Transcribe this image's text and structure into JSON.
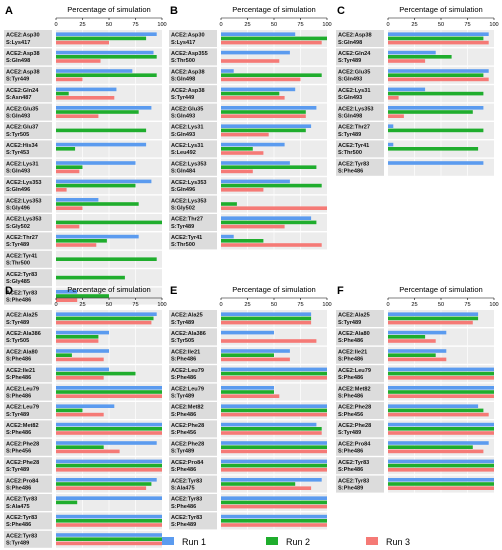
{
  "figure": {
    "legend": [
      {
        "label": "Run 1",
        "color": "#5b9bef"
      },
      {
        "label": "Run 2",
        "color": "#1fad2d"
      },
      {
        "label": "Run 3",
        "color": "#f57a76"
      }
    ]
  },
  "chart_data": [
    {
      "panel": "A",
      "type": "bar",
      "orientation": "horizontal",
      "title": "Percentage of simulation",
      "xlim": [
        0,
        100
      ],
      "xticks": [
        "0",
        "25",
        "50",
        "75",
        "100"
      ],
      "categories": [
        [
          "ACE2:Asp30",
          "S:Lys417"
        ],
        [
          "ACE2:Asp38",
          "S:Gln498"
        ],
        [
          "ACE2:Asp38",
          "S:Tyr449"
        ],
        [
          "ACE2:Gln24",
          "S:Asn487"
        ],
        [
          "ACE2:Glu35",
          "S:Gln493"
        ],
        [
          "ACE2:Glu37",
          "S:Tyr505"
        ],
        [
          "ACE2:His34",
          "S:Tyr453"
        ],
        [
          "ACE2:Lys31",
          "S:Gln493"
        ],
        [
          "ACE2:Lys353",
          "S:Gln496"
        ],
        [
          "ACE2:Lys353",
          "S:Gly496"
        ],
        [
          "ACE2:Lys353",
          "S:Gly502"
        ],
        [
          "ACE2:Thr27",
          "S:Tyr489"
        ],
        [
          "ACE2:Tyr41",
          "S:Thr500"
        ],
        [
          "ACE2:Tyr83",
          "S:Gly485"
        ],
        [
          "ACE2:Tyr83",
          "S:Phe486"
        ]
      ],
      "series": [
        {
          "name": "Run 1",
          "values": [
            95,
            92,
            72,
            57,
            90,
            0,
            85,
            75,
            90,
            40,
            0,
            78,
            0,
            0,
            20
          ]
        },
        {
          "name": "Run 2",
          "values": [
            85,
            95,
            95,
            12,
            78,
            85,
            18,
            25,
            75,
            78,
            100,
            48,
            95,
            65,
            50
          ]
        },
        {
          "name": "Run 3",
          "values": [
            50,
            42,
            25,
            55,
            40,
            0,
            0,
            22,
            10,
            25,
            22,
            38,
            0,
            0,
            20
          ]
        }
      ]
    },
    {
      "panel": "B",
      "type": "bar",
      "orientation": "horizontal",
      "title": "Percentage of simulation",
      "xlim": [
        0,
        100
      ],
      "xticks": [
        "0",
        "25",
        "50",
        "75",
        "100"
      ],
      "categories": [
        [
          "ACE2:Asp30",
          "S:Lys417"
        ],
        [
          "ACE2:Asp355",
          "S:Thr500"
        ],
        [
          "ACE2:Asp38",
          "S:Gln498"
        ],
        [
          "ACE2:Asp38",
          "S:Tyr449"
        ],
        [
          "ACE2:Glu35",
          "S:Gln493"
        ],
        [
          "ACE2:Lys31",
          "S:Gln493"
        ],
        [
          "ACE2:Lys31",
          "S:Leu492"
        ],
        [
          "ACE2:Lys353",
          "S:Gln484"
        ],
        [
          "ACE2:Lys353",
          "S:Gln496"
        ],
        [
          "ACE2:Lys353",
          "S:Gly502"
        ],
        [
          "ACE2:Thr27",
          "S:Tyr489"
        ],
        [
          "ACE2:Tyr41",
          "S:Thr500"
        ]
      ],
      "series": [
        {
          "name": "Run 1",
          "values": [
            70,
            65,
            12,
            70,
            90,
            85,
            60,
            65,
            65,
            0,
            85,
            12
          ]
        },
        {
          "name": "Run 2",
          "values": [
            100,
            0,
            95,
            55,
            80,
            80,
            30,
            90,
            95,
            15,
            90,
            40
          ]
        },
        {
          "name": "Run 3",
          "values": [
            95,
            55,
            75,
            60,
            80,
            45,
            40,
            30,
            40,
            100,
            60,
            95
          ]
        }
      ]
    },
    {
      "panel": "C",
      "type": "bar",
      "orientation": "horizontal",
      "title": "Percentage of simulation",
      "xlim": [
        0,
        100
      ],
      "xticks": [
        "0",
        "25",
        "50",
        "75",
        "100"
      ],
      "categories": [
        [
          "ACE2:Asp38",
          "S:Gln498"
        ],
        [
          "ACE2:Gln24",
          "S:Tyr489"
        ],
        [
          "ACE2:Glu35",
          "S:Gln493"
        ],
        [
          "ACE2:Lys31",
          "S:Gln493"
        ],
        [
          "ACE2:Lys353",
          "S:Gln498"
        ],
        [
          "ACE2:Thr27",
          "S:Tyr489"
        ],
        [
          "ACE2:Tyr41",
          "S:Thr500"
        ],
        [
          "ACE2:Tyr83",
          "S:Phe486"
        ]
      ],
      "series": [
        {
          "name": "Run 1",
          "values": [
            95,
            45,
            95,
            35,
            90,
            5,
            5,
            90
          ]
        },
        {
          "name": "Run 2",
          "values": [
            90,
            60,
            90,
            90,
            80,
            90,
            85,
            0
          ]
        },
        {
          "name": "Run 3",
          "values": [
            95,
            35,
            95,
            10,
            15,
            0,
            0,
            0
          ]
        }
      ]
    },
    {
      "panel": "D",
      "type": "bar",
      "orientation": "horizontal",
      "title": "Percentage of simulation",
      "xlim": [
        0,
        100
      ],
      "xticks": [
        "0",
        "25",
        "50",
        "75",
        "100"
      ],
      "categories": [
        [
          "ACE2:Ala25",
          "S:Tyr489"
        ],
        [
          "ACE2:Ala386",
          "S:Tyr505"
        ],
        [
          "ACE2:Ala80",
          "S:Phe486"
        ],
        [
          "ACE2:Ile21",
          "S:Phe486"
        ],
        [
          "ACE2:Leu79",
          "S:Phe486"
        ],
        [
          "ACE2:Leu79",
          "S:Tyr489"
        ],
        [
          "ACE2:Met82",
          "S:Phe486"
        ],
        [
          "ACE2:Phe28",
          "S:Phe456"
        ],
        [
          "ACE2:Phe28",
          "S:Tyr489"
        ],
        [
          "ACE2:Pro84",
          "S:Phe486"
        ],
        [
          "ACE2:Tyr83",
          "S:Ala475"
        ],
        [
          "ACE2:Tyr83",
          "S:Phe486"
        ],
        [
          "ACE2:Tyr83",
          "S:Tyr489"
        ]
      ],
      "series": [
        {
          "name": "Run 1",
          "values": [
            95,
            50,
            50,
            50,
            100,
            55,
            100,
            95,
            100,
            95,
            100,
            100,
            100
          ]
        },
        {
          "name": "Run 2",
          "values": [
            92,
            40,
            15,
            75,
            100,
            25,
            100,
            45,
            100,
            90,
            20,
            100,
            100
          ]
        },
        {
          "name": "Run 3",
          "values": [
            90,
            40,
            45,
            45,
            100,
            45,
            100,
            60,
            100,
            85,
            0,
            100,
            100
          ]
        }
      ]
    },
    {
      "panel": "E",
      "type": "bar",
      "orientation": "horizontal",
      "title": "Percentage of simulation",
      "xlim": [
        0,
        100
      ],
      "xticks": [
        "0",
        "25",
        "50",
        "75",
        "100"
      ],
      "categories": [
        [
          "ACE2:Ala25",
          "S:Tyr489"
        ],
        [
          "ACE2:Ala386",
          "S:Tyr505"
        ],
        [
          "ACE2:Ile21",
          "S:Phe486"
        ],
        [
          "ACE2:Leu79",
          "S:Phe486"
        ],
        [
          "ACE2:Leu79",
          "S:Tyr489"
        ],
        [
          "ACE2:Met82",
          "S:Phe486"
        ],
        [
          "ACE2:Phe28",
          "S:Phe456"
        ],
        [
          "ACE2:Phe28",
          "S:Tyr489"
        ],
        [
          "ACE2:Pro84",
          "S:Phe486"
        ],
        [
          "ACE2:Tyr83",
          "S:Ala475"
        ],
        [
          "ACE2:Tyr83",
          "S:Phe486"
        ],
        [
          "ACE2:Tyr83",
          "S:Phe489"
        ]
      ],
      "series": [
        {
          "name": "Run 1",
          "values": [
            85,
            50,
            65,
            100,
            50,
            100,
            90,
            100,
            100,
            95,
            100,
            100
          ]
        },
        {
          "name": "Run 2",
          "values": [
            85,
            0,
            50,
            100,
            50,
            100,
            95,
            100,
            100,
            70,
            100,
            100
          ]
        },
        {
          "name": "Run 3",
          "values": [
            85,
            90,
            65,
            100,
            55,
            100,
            95,
            100,
            100,
            85,
            100,
            100
          ]
        }
      ]
    },
    {
      "panel": "F",
      "type": "bar",
      "orientation": "horizontal",
      "title": "Percentage of simulation",
      "xlim": [
        0,
        100
      ],
      "xticks": [
        "0",
        "25",
        "50",
        "75",
        "100"
      ],
      "categories": [
        [
          "ACE2:Ala25",
          "S:Tyr489"
        ],
        [
          "ACE2:Ala80",
          "S:Phe486"
        ],
        [
          "ACE2:Ile21",
          "S:Phe486"
        ],
        [
          "ACE2:Leu79",
          "S:Phe486"
        ],
        [
          "ACE2:Met82",
          "S:Phe486"
        ],
        [
          "ACE2:Phe28",
          "S:Phe456"
        ],
        [
          "ACE2:Phe28",
          "S:Tyr489"
        ],
        [
          "ACE2:Pro84",
          "S:Phe486"
        ],
        [
          "ACE2:Tyr83",
          "S:Phe486"
        ],
        [
          "ACE2:Tyr83",
          "S:Phe489"
        ]
      ],
      "series": [
        {
          "name": "Run 1",
          "values": [
            85,
            55,
            55,
            100,
            100,
            85,
            100,
            95,
            100,
            100
          ]
        },
        {
          "name": "Run 2",
          "values": [
            85,
            35,
            45,
            100,
            100,
            90,
            100,
            80,
            100,
            100
          ]
        },
        {
          "name": "Run 3",
          "values": [
            80,
            45,
            55,
            100,
            100,
            95,
            100,
            90,
            100,
            100
          ]
        }
      ]
    }
  ]
}
